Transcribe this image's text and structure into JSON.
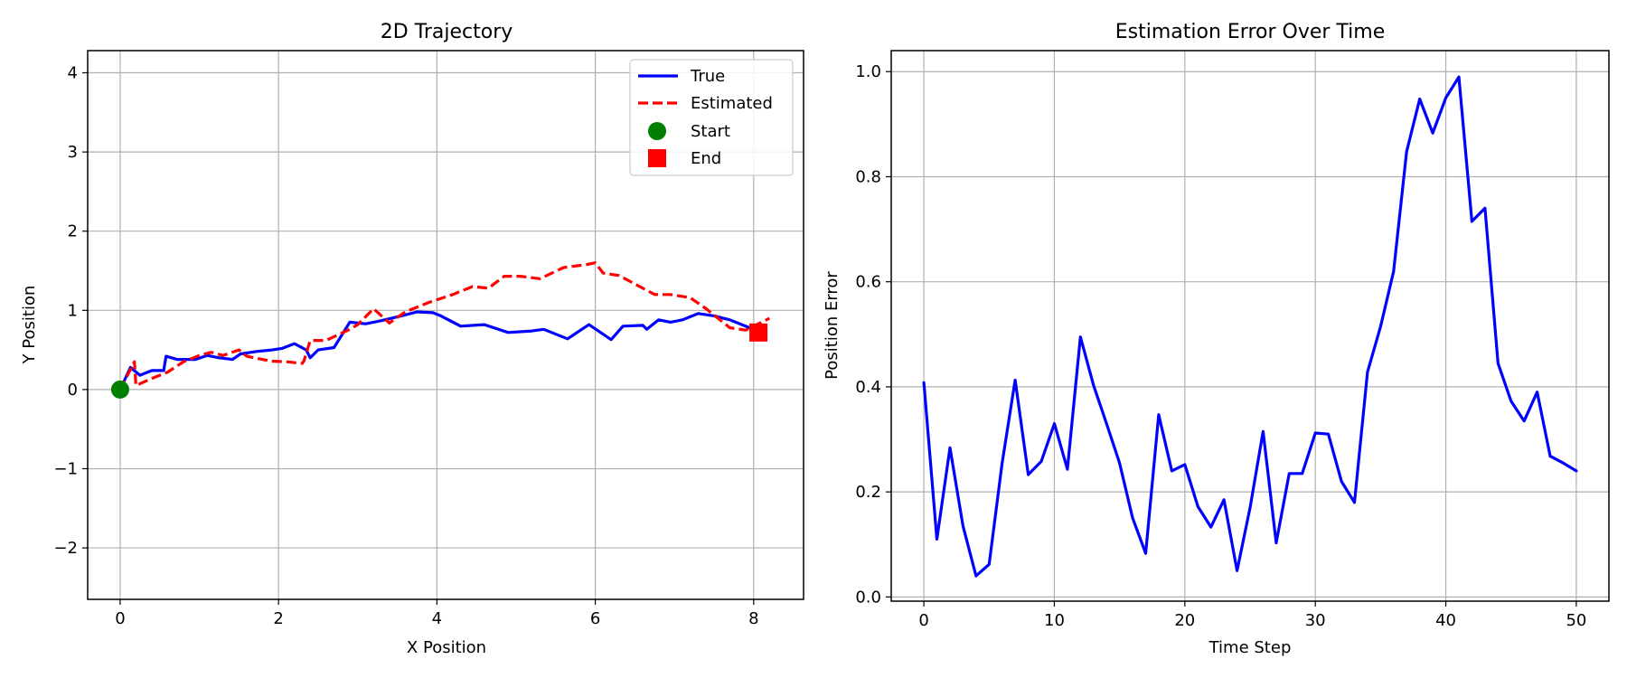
{
  "chart_data": [
    {
      "type": "line",
      "title": "2D Trajectory",
      "xlabel": "X Position",
      "ylabel": "Y Position",
      "xlim": [
        -0.41,
        8.63
      ],
      "ylim": [
        -2.65,
        4.28
      ],
      "xticks": [
        0,
        2,
        4,
        6,
        8
      ],
      "yticks": [
        -2,
        -1,
        0,
        1,
        2,
        3,
        4
      ],
      "grid": true,
      "legend_position": "top-right",
      "series": [
        {
          "name": "True",
          "style": "solid",
          "color": "#0000ff",
          "x": [
            0,
            0.13,
            0.25,
            0.4,
            0.55,
            0.58,
            0.72,
            0.95,
            1.1,
            1.25,
            1.42,
            1.52,
            1.72,
            1.92,
            2.05,
            2.2,
            2.35,
            2.4,
            2.5,
            2.7,
            2.9,
            3.1,
            3.3,
            3.55,
            3.75,
            3.95,
            4.05,
            4.3,
            4.6,
            4.9,
            5.2,
            5.35,
            5.65,
            5.92,
            6.2,
            6.35,
            6.6,
            6.65,
            6.8,
            6.95,
            7.1,
            7.3,
            7.5,
            7.7,
            7.95,
            8.1
          ],
          "y": [
            0,
            0.28,
            0.18,
            0.24,
            0.24,
            0.42,
            0.38,
            0.38,
            0.43,
            0.4,
            0.38,
            0.45,
            0.48,
            0.5,
            0.52,
            0.58,
            0.5,
            0.4,
            0.5,
            0.53,
            0.85,
            0.83,
            0.87,
            0.93,
            0.98,
            0.97,
            0.93,
            0.8,
            0.82,
            0.72,
            0.74,
            0.76,
            0.64,
            0.82,
            0.63,
            0.8,
            0.81,
            0.76,
            0.88,
            0.85,
            0.88,
            0.96,
            0.93,
            0.88,
            0.78,
            0.72
          ]
        },
        {
          "name": "Estimated",
          "style": "dashed",
          "color": "#ff0000",
          "x": [
            0,
            0.18,
            0.2,
            0.4,
            0.6,
            0.8,
            1.0,
            1.15,
            1.3,
            1.5,
            1.6,
            1.9,
            2.1,
            2.3,
            2.32,
            2.4,
            2.6,
            2.9,
            3.0,
            3.2,
            3.4,
            3.6,
            3.9,
            4.2,
            4.45,
            4.65,
            4.85,
            5.05,
            5.3,
            5.6,
            5.9,
            6.0,
            6.1,
            6.3,
            6.75,
            6.95,
            7.2,
            7.4,
            7.55,
            7.7,
            7.9,
            8.2
          ],
          "y": [
            0,
            0.35,
            0.05,
            0.14,
            0.22,
            0.35,
            0.43,
            0.47,
            0.43,
            0.5,
            0.42,
            0.36,
            0.35,
            0.33,
            0.36,
            0.62,
            0.62,
            0.76,
            0.82,
            1.02,
            0.84,
            0.98,
            1.1,
            1.2,
            1.3,
            1.28,
            1.43,
            1.43,
            1.4,
            1.54,
            1.58,
            1.6,
            1.47,
            1.44,
            1.2,
            1.2,
            1.16,
            1.02,
            0.9,
            0.78,
            0.75,
            0.9
          ]
        }
      ],
      "markers": [
        {
          "name": "Start",
          "shape": "circle",
          "color": "#008000",
          "x": 0,
          "y": 0
        },
        {
          "name": "End",
          "shape": "square",
          "color": "#ff0000",
          "x": 8.06,
          "y": 0.72
        }
      ]
    },
    {
      "type": "line",
      "title": "Estimation Error Over Time",
      "xlabel": "Time Step",
      "ylabel": "Position Error",
      "xlim": [
        -2.5,
        52.5
      ],
      "ylim": [
        -0.008,
        1.04
      ],
      "xticks": [
        0,
        10,
        20,
        30,
        40,
        50
      ],
      "yticks": [
        0.0,
        0.2,
        0.4,
        0.6,
        0.8,
        1.0
      ],
      "grid": true,
      "series": [
        {
          "style": "solid",
          "color": "#0000ff",
          "x": [
            0,
            1,
            2,
            3,
            4,
            5,
            6,
            7,
            8,
            9,
            10,
            11,
            12,
            13,
            14,
            15,
            16,
            17,
            18,
            19,
            20,
            21,
            22,
            23,
            24,
            25,
            26,
            27,
            28,
            29,
            30,
            31,
            32,
            33,
            34,
            35,
            36,
            37,
            38,
            39,
            40,
            41,
            42,
            43,
            44,
            45,
            46,
            47,
            48,
            49,
            50
          ],
          "values": [
            0.408,
            0.11,
            0.284,
            0.135,
            0.04,
            0.062,
            0.255,
            0.413,
            0.233,
            0.258,
            0.33,
            0.243,
            0.495,
            0.403,
            0.33,
            0.255,
            0.15,
            0.083,
            0.347,
            0.24,
            0.252,
            0.172,
            0.133,
            0.185,
            0.05,
            0.17,
            0.315,
            0.103,
            0.235,
            0.235,
            0.312,
            0.31,
            0.22,
            0.18,
            0.428,
            0.515,
            0.62,
            0.848,
            0.948,
            0.883,
            0.95,
            0.99,
            0.715,
            0.74,
            0.445,
            0.373,
            0.335,
            0.39,
            0.268,
            0.255,
            0.24
          ]
        }
      ]
    }
  ]
}
